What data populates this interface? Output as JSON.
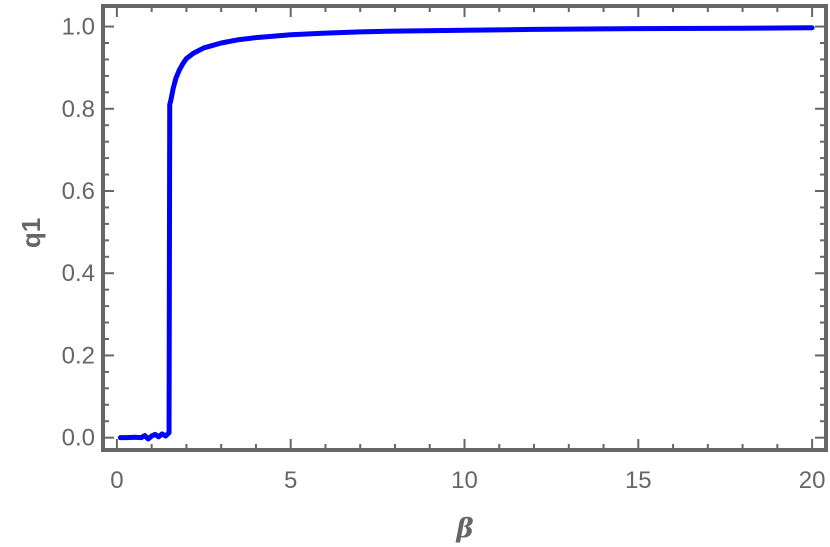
{
  "chart_data": {
    "type": "line",
    "title": "",
    "xlabel": "β",
    "ylabel": "q1",
    "xlim": [
      -0.4,
      20.4
    ],
    "ylim": [
      -0.03,
      1.05
    ],
    "grid": false,
    "frame_color": "#666666",
    "line_color": "#0000ff",
    "x_ticks": [
      "0",
      "5",
      "10",
      "15",
      "20"
    ],
    "y_ticks": [
      "0.0",
      "0.2",
      "0.4",
      "0.6",
      "0.8",
      "1.0"
    ],
    "series": [
      {
        "x": [
          0.1,
          0.3,
          0.5,
          0.7,
          0.8,
          0.9,
          1.0,
          1.1,
          1.2,
          1.3,
          1.4,
          1.5,
          1.52,
          1.55,
          1.62,
          1.7,
          1.8,
          1.9,
          2.0,
          2.2,
          2.5,
          3.0,
          3.5,
          4.0,
          5.0,
          6.0,
          7.0,
          8.0,
          10.0,
          12.0,
          15.0,
          18.0,
          20.0
        ],
        "y": [
          0.0,
          0.0,
          0.001,
          0.0,
          0.005,
          -0.003,
          0.004,
          0.008,
          0.002,
          0.009,
          0.004,
          0.012,
          0.81,
          0.82,
          0.85,
          0.875,
          0.895,
          0.91,
          0.922,
          0.935,
          0.948,
          0.96,
          0.968,
          0.973,
          0.98,
          0.984,
          0.987,
          0.989,
          0.991,
          0.993,
          0.995,
          0.996,
          0.997
        ]
      }
    ]
  }
}
